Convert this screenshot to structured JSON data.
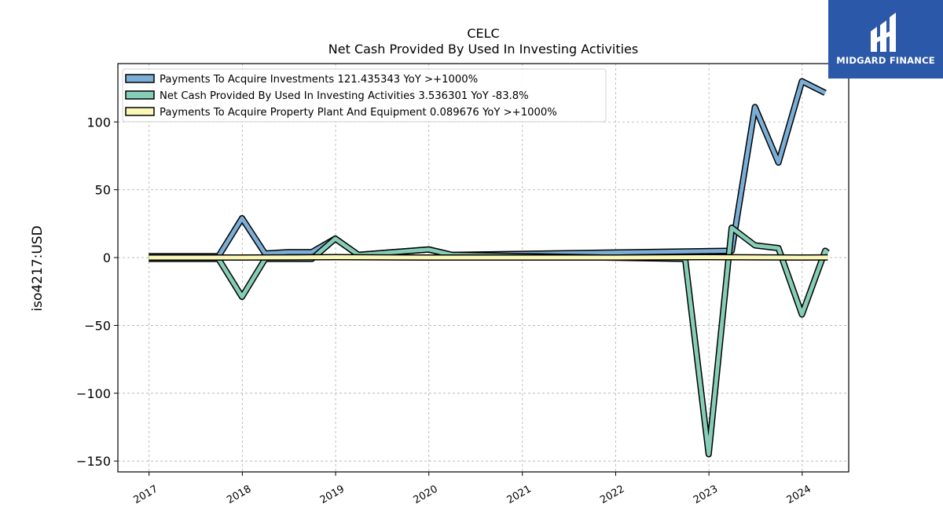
{
  "chart_data": {
    "type": "line",
    "title": "CELC",
    "subtitle": "Net Cash Provided By Used In Investing Activities",
    "ylabel": "iso4217:USD",
    "xlabel": "",
    "x_ticks": [
      "2017",
      "2018",
      "2019",
      "2020",
      "2021",
      "2022",
      "2023",
      "2024"
    ],
    "y_ticks": [
      100,
      50,
      0,
      -50,
      -100,
      -150
    ],
    "xlim": [
      "2016-09-01",
      "2024-07-01"
    ],
    "ylim": [
      -158,
      143
    ],
    "grid": true,
    "legend_position": "top-left",
    "series": [
      {
        "name": "Payments To Acquire Investments  121.435343 YoY >+1000%",
        "color": "#7aaed6",
        "points": [
          [
            "2016-12-31",
            1
          ],
          [
            "2017-09-30",
            1
          ],
          [
            "2017-12-31",
            29
          ],
          [
            "2018-03-31",
            3
          ],
          [
            "2018-06-30",
            4
          ],
          [
            "2018-09-30",
            4
          ],
          [
            "2018-12-31",
            14
          ],
          [
            "2019-03-31",
            2
          ],
          [
            "2019-12-31",
            6
          ],
          [
            "2020-03-31",
            2
          ],
          [
            "2023-03-31",
            5
          ],
          [
            "2023-06-30",
            111
          ],
          [
            "2023-09-30",
            70
          ],
          [
            "2023-12-31",
            130
          ],
          [
            "2024-03-31",
            121.4
          ]
        ]
      },
      {
        "name": "Net Cash Provided By Used In Investing Activities  3.536301 YoY -83.8%",
        "color": "#86cdb8",
        "points": [
          [
            "2016-12-31",
            -1
          ],
          [
            "2017-09-30",
            -1
          ],
          [
            "2017-12-31",
            -29
          ],
          [
            "2018-03-31",
            -1
          ],
          [
            "2018-09-30",
            -1
          ],
          [
            "2018-12-31",
            14
          ],
          [
            "2019-03-31",
            2
          ],
          [
            "2019-12-31",
            6
          ],
          [
            "2020-03-31",
            2
          ],
          [
            "2022-09-30",
            -1
          ],
          [
            "2022-12-31",
            -145
          ],
          [
            "2023-03-31",
            22
          ],
          [
            "2023-06-30",
            9
          ],
          [
            "2023-09-30",
            7
          ],
          [
            "2023-12-31",
            -42
          ],
          [
            "2024-03-31",
            5
          ],
          [
            "2024-04-10",
            3.5
          ]
        ]
      },
      {
        "name": "Payments To Acquire Property Plant And Equipment  0.089676 YoY >+1000%",
        "color": "#fbf8b7",
        "points": [
          [
            "2016-12-31",
            0
          ],
          [
            "2017-12-31",
            0
          ],
          [
            "2018-12-31",
            0.3
          ],
          [
            "2019-12-31",
            0
          ],
          [
            "2020-12-31",
            0
          ],
          [
            "2021-12-31",
            0
          ],
          [
            "2022-12-31",
            0.3
          ],
          [
            "2023-12-31",
            0
          ],
          [
            "2024-04-10",
            0.1
          ]
        ]
      }
    ]
  },
  "logo": {
    "text": "MIDGARD FINANCE",
    "bg_color": "#2b58a8"
  }
}
